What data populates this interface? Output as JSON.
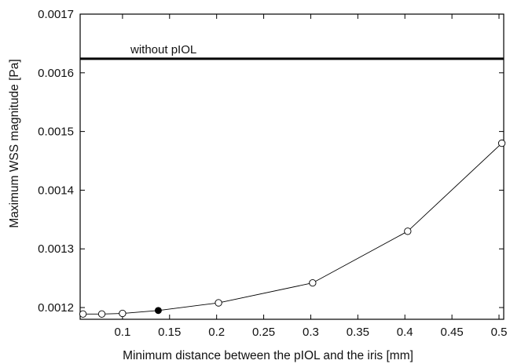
{
  "chart_data": {
    "type": "line",
    "xlabel": "Minimum distance between the pIOL and the iris [mm]",
    "ylabel": "Maximum WSS magnitude [Pa]",
    "xlim": [
      0.055,
      0.505
    ],
    "ylim": [
      0.00118,
      0.0017
    ],
    "x_ticks": [
      0.1,
      0.15,
      0.2,
      0.25,
      0.3,
      0.35,
      0.4,
      0.45,
      0.5
    ],
    "x_tick_labels": [
      "0.1",
      "0.15",
      "0.2",
      "0.25",
      "0.3",
      "0.35",
      "0.4",
      "0.45",
      "0.5"
    ],
    "y_ticks": [
      0.0012,
      0.0013,
      0.0014,
      0.0015,
      0.0016,
      0.0017
    ],
    "y_tick_labels": [
      "0.0012",
      "0.0013",
      "0.0014",
      "0.0015",
      "0.0016",
      "0.0017"
    ],
    "grid": false,
    "series": [
      {
        "x": [
          0.058,
          0.078,
          0.1,
          0.138,
          0.202,
          0.302,
          0.403,
          0.503
        ],
        "y": [
          0.001189,
          0.001189,
          0.00119,
          0.001195,
          0.001208,
          0.001242,
          0.00133,
          0.00148
        ],
        "highlighted_index": 3
      }
    ],
    "reference_line": {
      "label": "without pIOL",
      "y": 0.001624
    }
  }
}
